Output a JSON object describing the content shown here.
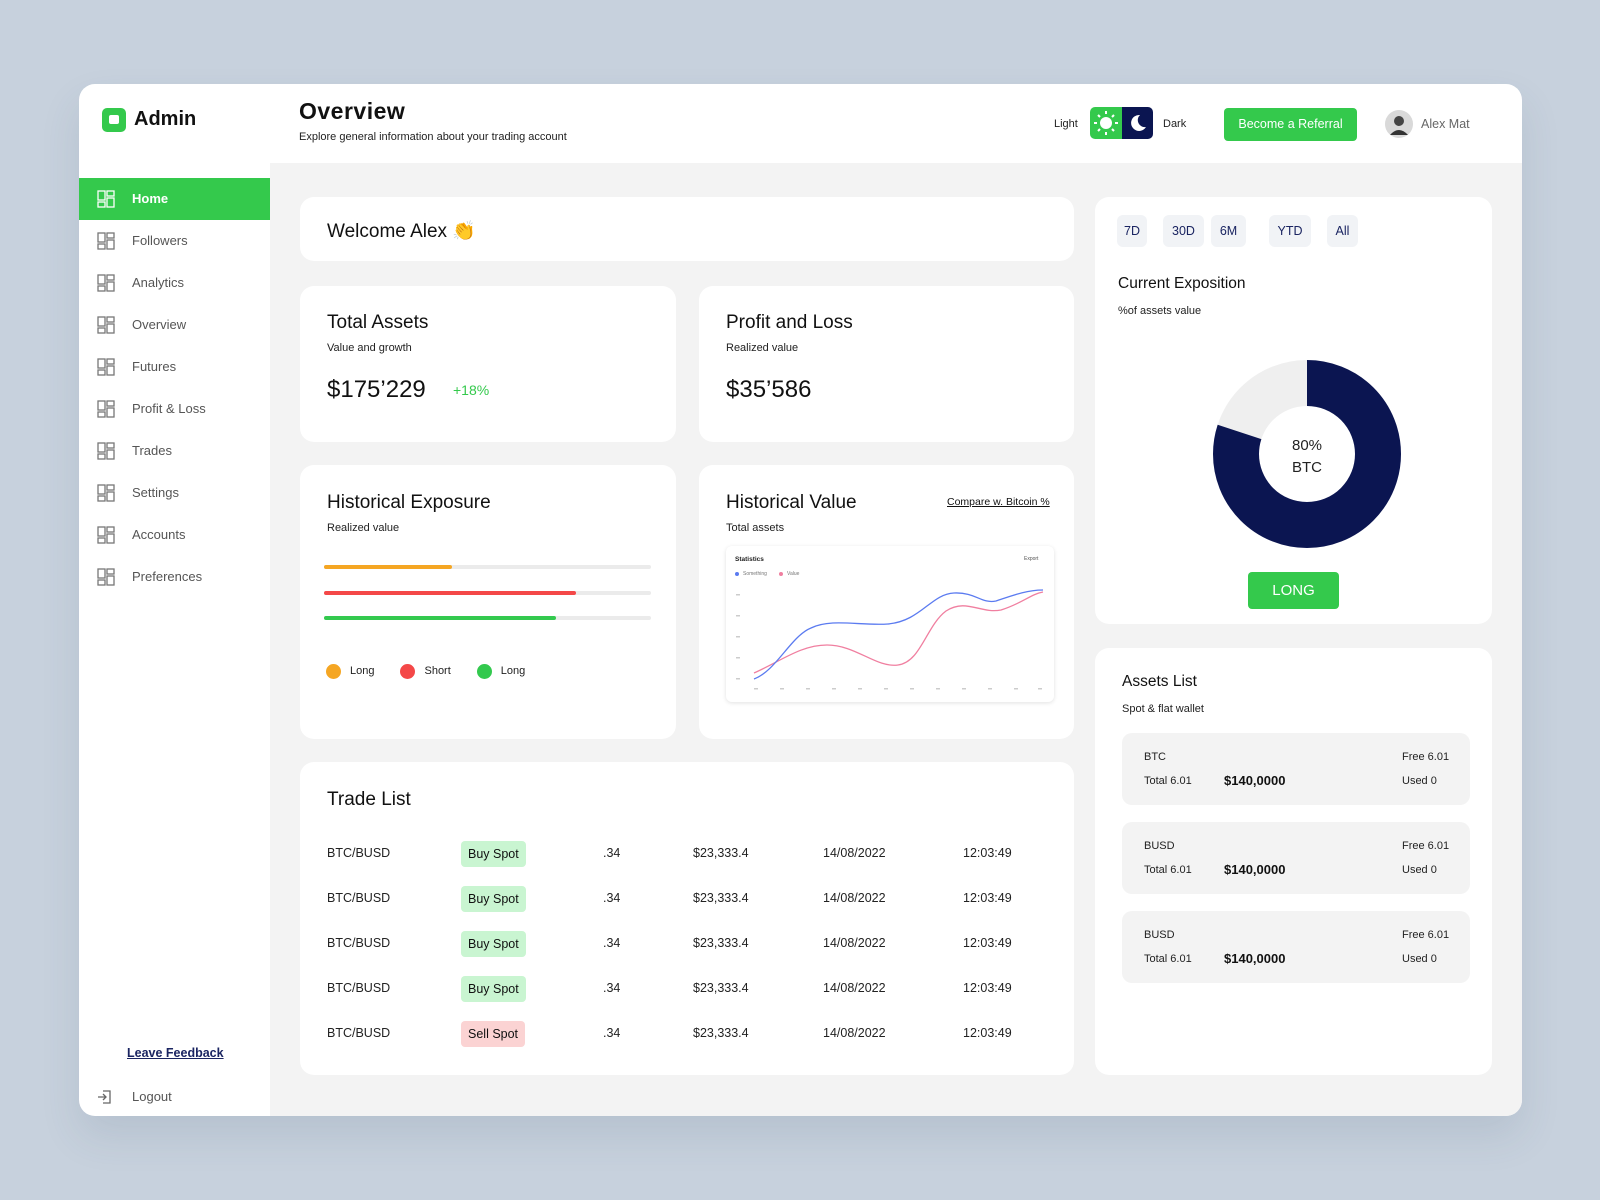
{
  "sidebar": {
    "logo": "Admin",
    "nav": [
      "Home",
      "Followers",
      "Analytics",
      "Overview",
      "Futures",
      "Profit & Loss",
      "Trades",
      "Settings",
      "Accounts",
      "Preferences"
    ],
    "active": 0,
    "feedback": "Leave Feedback",
    "logout": "Logout"
  },
  "header": {
    "title": "Overview",
    "subtitle": "Explore general information about your trading account",
    "theme_light": "Light",
    "theme_dark": "Dark",
    "referral": "Become a Referral",
    "user": "Alex Mat"
  },
  "welcome": "Welcome Alex 👏",
  "total_assets": {
    "title": "Total Assets",
    "subtitle": "Value and growth",
    "value": "$175’229",
    "change": "+18%"
  },
  "profit_loss": {
    "title": "Profit and Loss",
    "subtitle": "Realized value",
    "value": "$35’586"
  },
  "historical_exposure": {
    "title": "Historical Exposure",
    "subtitle": "Realized value",
    "bars": [
      {
        "name": "Long",
        "color": "#f5a623",
        "value": 39
      },
      {
        "name": "Short",
        "color": "#f44848",
        "value": 77
      },
      {
        "name": "Long",
        "color": "#33c94e",
        "value": 71
      }
    ]
  },
  "historical_value": {
    "title": "Historical Value",
    "subtitle": "Total assets",
    "link": "Compare w. Bitcoin %",
    "chart": {
      "title": "Statistics",
      "export": "Export",
      "legend": [
        "Something",
        "Value"
      ]
    }
  },
  "trade_list": {
    "title": "Trade List",
    "rows": [
      {
        "pair": "BTC/BUSD",
        "type": "Buy Spot",
        "type_color": "#c9f5d1",
        "amount": ".34",
        "price": "$23,333.4",
        "date": "14/08/2022",
        "time": "12:03:49"
      },
      {
        "pair": "BTC/BUSD",
        "type": "Buy Spot",
        "type_color": "#c9f5d1",
        "amount": ".34",
        "price": "$23,333.4",
        "date": "14/08/2022",
        "time": "12:03:49"
      },
      {
        "pair": "BTC/BUSD",
        "type": "Buy Spot",
        "type_color": "#c9f5d1",
        "amount": ".34",
        "price": "$23,333.4",
        "date": "14/08/2022",
        "time": "12:03:49"
      },
      {
        "pair": "BTC/BUSD",
        "type": "Buy Spot",
        "type_color": "#c9f5d1",
        "amount": ".34",
        "price": "$23,333.4",
        "date": "14/08/2022",
        "time": "12:03:49"
      },
      {
        "pair": "BTC/BUSD",
        "type": "Sell Spot",
        "type_color": "#fbd3d3",
        "amount": ".34",
        "price": "$23,333.4",
        "date": "14/08/2022",
        "time": "12:03:49"
      }
    ]
  },
  "exposition": {
    "periods": [
      "7D",
      "30D",
      "6M",
      "YTD",
      "All"
    ],
    "title": "Current Exposition",
    "subtitle": "%of assets value",
    "donut": {
      "value": 80,
      "label": "80%",
      "asset": "BTC",
      "color": "#0b1551"
    },
    "position": "LONG"
  },
  "assets_list": {
    "title": "Assets List",
    "subtitle": "Spot & flat wallet",
    "items": [
      {
        "asset": "BTC",
        "total": "Total 6.01",
        "value": "$140,0000",
        "free": "Free 6.01",
        "used": "Used 0"
      },
      {
        "asset": "BUSD",
        "total": "Total 6.01",
        "value": "$140,0000",
        "free": "Free 6.01",
        "used": "Used 0"
      },
      {
        "asset": "BUSD",
        "total": "Total 6.01",
        "value": "$140,0000",
        "free": "Free 6.01",
        "used": "Used 0"
      }
    ]
  }
}
